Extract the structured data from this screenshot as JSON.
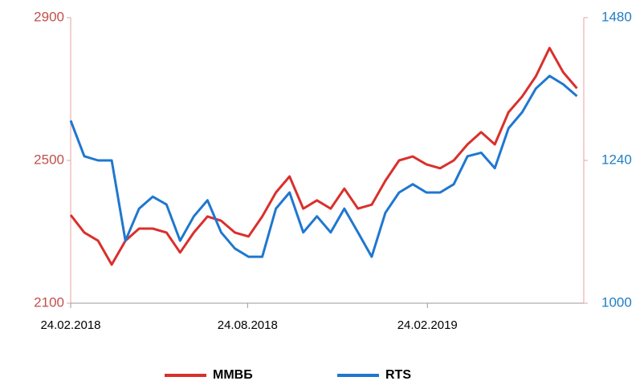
{
  "chart_data": {
    "type": "line",
    "x": [
      "2018-02-24",
      "2018-03-10",
      "2018-03-24",
      "2018-04-07",
      "2018-04-21",
      "2018-05-05",
      "2018-05-19",
      "2018-06-02",
      "2018-06-16",
      "2018-06-30",
      "2018-07-14",
      "2018-07-28",
      "2018-08-11",
      "2018-08-25",
      "2018-09-08",
      "2018-09-22",
      "2018-10-06",
      "2018-10-20",
      "2018-11-03",
      "2018-11-17",
      "2018-12-01",
      "2018-12-15",
      "2018-12-29",
      "2019-01-12",
      "2019-01-26",
      "2019-02-09",
      "2019-02-23",
      "2019-03-09",
      "2019-03-23",
      "2019-04-06",
      "2019-04-20",
      "2019-05-04",
      "2019-05-18",
      "2019-06-01",
      "2019-06-15",
      "2019-06-29",
      "2019-07-13",
      "2019-07-27"
    ],
    "series": [
      {
        "name": "ММВБ",
        "color": "#d9302c",
        "axis": "y",
        "values": [
          2347,
          2298,
          2275,
          2208,
          2275,
          2309,
          2309,
          2298,
          2242,
          2298,
          2343,
          2331,
          2298,
          2287,
          2343,
          2410,
          2455,
          2365,
          2388,
          2365,
          2421,
          2365,
          2376,
          2443,
          2500,
          2511,
          2489,
          2478,
          2500,
          2545,
          2579,
          2545,
          2635,
          2679,
          2736,
          2815,
          2747,
          2702
        ]
      },
      {
        "name": "RTS",
        "color": "#1f77d0",
        "axis": "y2",
        "values": [
          1307,
          1247,
          1240,
          1240,
          1105,
          1159,
          1179,
          1166,
          1105,
          1146,
          1173,
          1119,
          1092,
          1078,
          1078,
          1159,
          1186,
          1119,
          1146,
          1119,
          1159,
          1119,
          1078,
          1152,
          1186,
          1200,
          1186,
          1186,
          1200,
          1247,
          1253,
          1227,
          1294,
          1321,
          1361,
          1382,
          1368,
          1348
        ]
      }
    ],
    "xlim": [
      "2018-02-24",
      "2019-08-03"
    ],
    "xticks": [
      {
        "value": "2018-02-24",
        "label": "24.02.2018"
      },
      {
        "value": "2018-08-24",
        "label": "24.08.2018"
      },
      {
        "value": "2019-02-24",
        "label": "24.02.2019"
      }
    ],
    "ylim": [
      2100,
      2900
    ],
    "yticks": [
      2100,
      2500,
      2900
    ],
    "y2lim": [
      1000,
      1480
    ],
    "y2ticks": [
      1000,
      1240,
      1480
    ],
    "legend": "bottom"
  }
}
